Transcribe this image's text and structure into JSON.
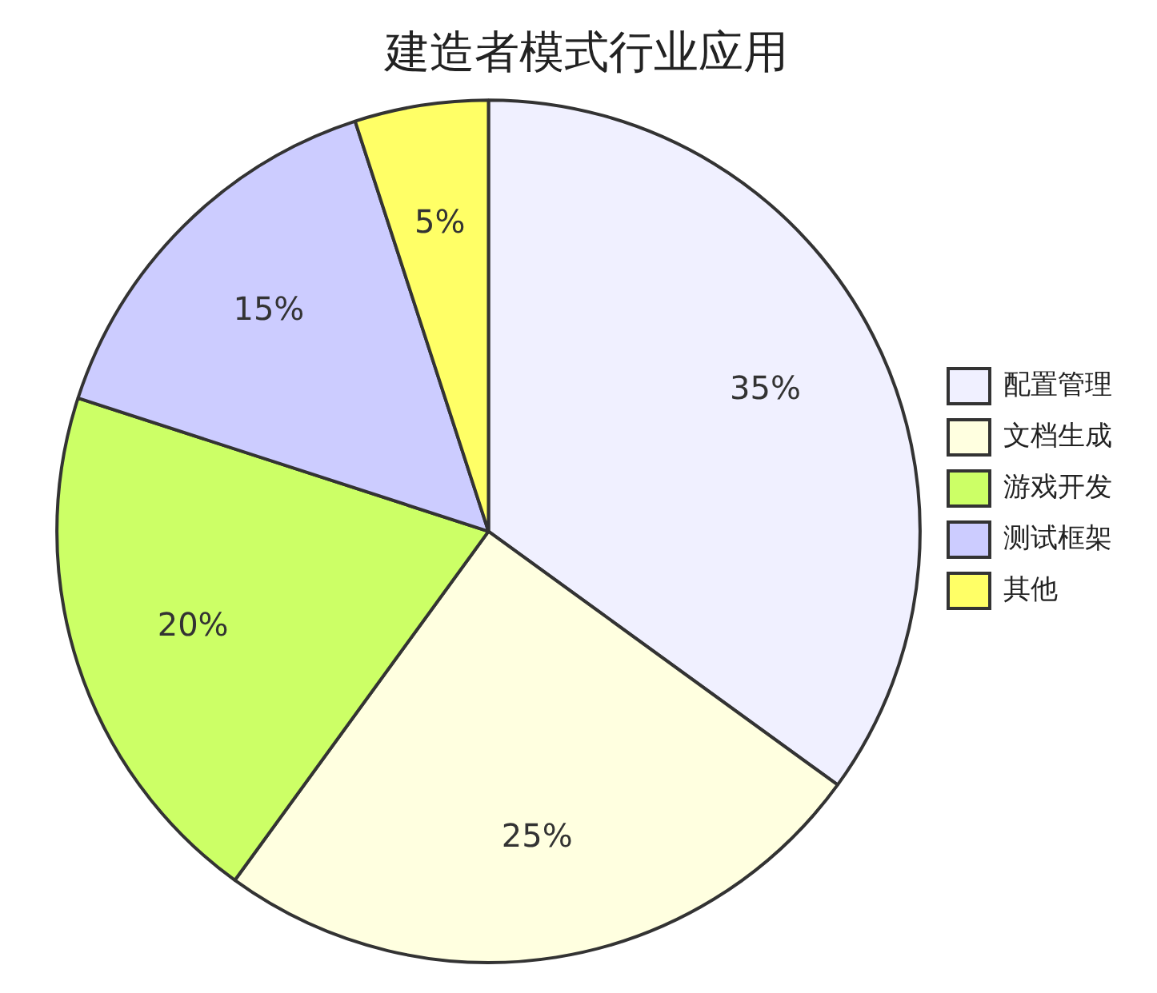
{
  "chart_data": {
    "type": "pie",
    "title": "建造者模式行业应用",
    "categories": [
      "配置管理",
      "文档生成",
      "游戏开发",
      "测试框架",
      "其他"
    ],
    "values": [
      35,
      25,
      20,
      15,
      5
    ],
    "colors": [
      "#f0f0ff",
      "#ffffe0",
      "#ccff66",
      "#ccccff",
      "#ffff66"
    ],
    "value_labels": [
      "35%",
      "25%",
      "20%",
      "15%",
      "5%"
    ],
    "legend": "right"
  }
}
